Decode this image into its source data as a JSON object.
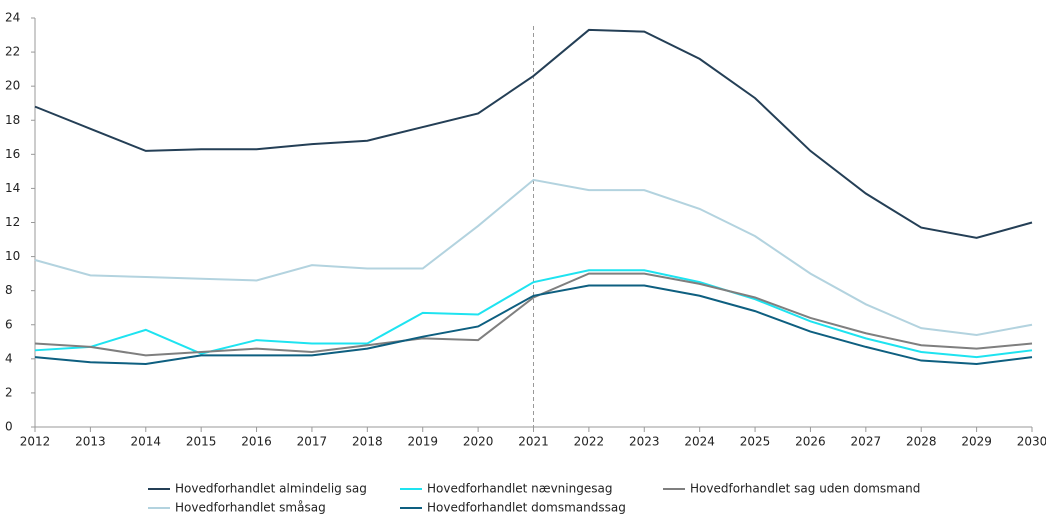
{
  "chart_data": {
    "type": "line",
    "x": [
      2012,
      2013,
      2014,
      2015,
      2016,
      2017,
      2018,
      2019,
      2020,
      2021,
      2022,
      2023,
      2024,
      2025,
      2026,
      2027,
      2028,
      2029,
      2030
    ],
    "series": [
      {
        "name": "Hovedforhandlet almindelig sag",
        "color": "#243f56",
        "values": [
          18.8,
          17.5,
          16.2,
          16.3,
          16.3,
          16.6,
          16.8,
          17.6,
          18.4,
          20.6,
          23.3,
          23.2,
          21.6,
          19.3,
          16.2,
          13.7,
          11.7,
          11.1,
          12.0
        ]
      },
      {
        "name": "Hovedforhandlet nævningesag",
        "color": "#1ee3f0",
        "values": [
          4.5,
          4.7,
          5.7,
          4.3,
          5.1,
          4.9,
          4.9,
          6.7,
          6.6,
          8.5,
          9.2,
          9.2,
          8.5,
          7.5,
          6.2,
          5.2,
          4.4,
          4.1,
          4.5
        ]
      },
      {
        "name": "Hovedforhandlet sag uden domsmand",
        "color": "#7f7f7f",
        "values": [
          4.9,
          4.7,
          4.2,
          4.4,
          4.6,
          4.4,
          4.8,
          5.2,
          5.1,
          7.6,
          9.0,
          9.0,
          8.4,
          7.6,
          6.4,
          5.5,
          4.8,
          4.6,
          4.9
        ]
      },
      {
        "name": "Hovedforhandlet småsag",
        "color": "#b3d3df",
        "values": [
          9.8,
          8.9,
          8.8,
          8.7,
          8.6,
          9.5,
          9.3,
          9.3,
          11.8,
          14.5,
          13.9,
          13.9,
          12.8,
          11.2,
          9.0,
          7.2,
          5.8,
          5.4,
          6.0
        ]
      },
      {
        "name": "Hovedforhandlet domsmandssag",
        "color": "#0e5f80",
        "values": [
          4.1,
          3.8,
          3.7,
          4.2,
          4.2,
          4.2,
          4.6,
          5.3,
          5.9,
          7.7,
          8.3,
          8.3,
          7.7,
          6.8,
          5.6,
          4.7,
          3.9,
          3.7,
          4.1
        ]
      }
    ],
    "xlim": [
      2012,
      2030
    ],
    "xticks": [
      2012,
      2013,
      2014,
      2015,
      2016,
      2017,
      2018,
      2019,
      2020,
      2021,
      2022,
      2023,
      2024,
      2025,
      2026,
      2027,
      2028,
      2029,
      2030
    ],
    "ylim": [
      0,
      24
    ],
    "yticks": [
      0,
      2,
      4,
      6,
      8,
      10,
      12,
      14,
      16,
      18,
      20,
      22,
      24
    ],
    "vline": 2021,
    "grid": false,
    "legend": "bottom"
  }
}
